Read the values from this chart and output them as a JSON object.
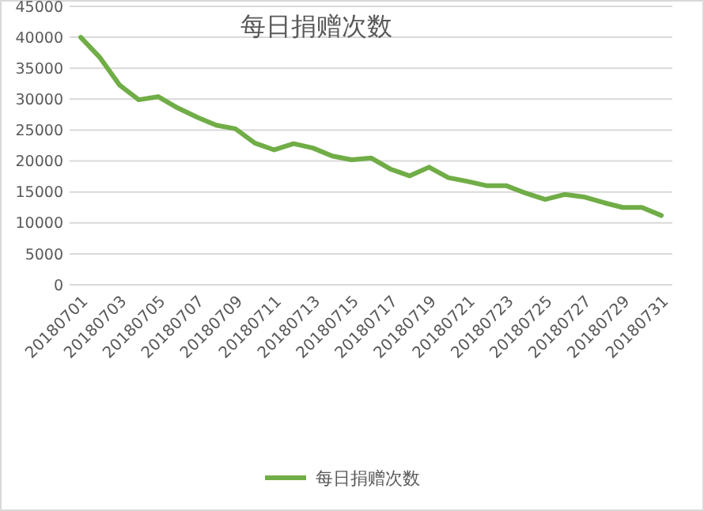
{
  "chart_data": {
    "type": "line",
    "title": "每日捐赠次数",
    "categories": [
      "20180701",
      null,
      "20180703",
      null,
      "20180705",
      null,
      "20180707",
      null,
      "20180709",
      null,
      "20180711",
      null,
      "20180713",
      null,
      "20180715",
      null,
      "20180717",
      null,
      "20180719",
      null,
      "20180721",
      null,
      "20180723",
      null,
      "20180725",
      null,
      "20180727",
      null,
      "20180729",
      null,
      "20180731"
    ],
    "series": [
      {
        "name": "每日捐赠次数",
        "color": "#70ad47",
        "values": [
          40000,
          36700,
          32300,
          29900,
          30400,
          28600,
          27100,
          25800,
          25200,
          22900,
          21800,
          22800,
          22100,
          20800,
          20200,
          20500,
          18700,
          17600,
          19000,
          17300,
          16700,
          16000,
          16000,
          14800,
          13800,
          14600,
          14200,
          13300,
          12500,
          12500,
          11200
        ]
      }
    ],
    "ylim": [
      0,
      45000
    ],
    "yticks": [
      0,
      5000,
      10000,
      15000,
      20000,
      25000,
      30000,
      35000,
      40000,
      45000
    ],
    "grid": "y",
    "legend": "bottom",
    "marker": "none",
    "line_style": "solid"
  }
}
